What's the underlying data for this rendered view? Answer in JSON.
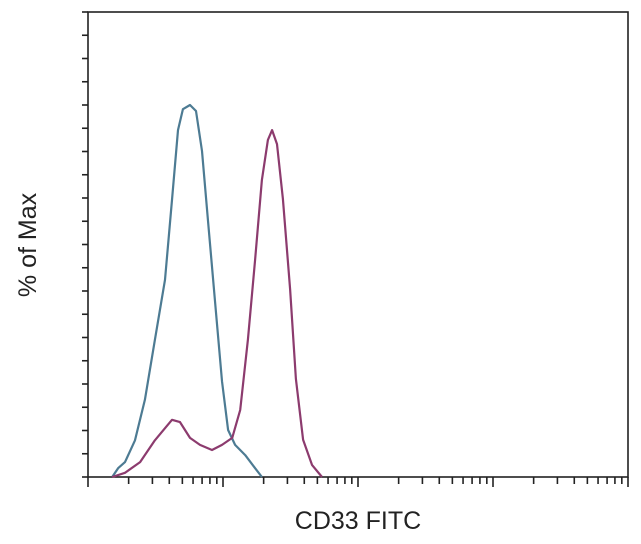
{
  "chart_data": {
    "type": "line",
    "title": "",
    "xlabel": "CD33 FITC",
    "ylabel": "% of Max",
    "xscale": "log",
    "xlim": [
      1,
      10000
    ],
    "ylim": [
      0,
      100
    ],
    "grid": false,
    "legend": "none",
    "series": [
      {
        "color": "#4d7b93",
        "x": [
          1.51,
          1.67,
          1.88,
          2.23,
          2.64,
          3.13,
          3.72,
          4.19,
          4.64,
          5.05,
          5.7,
          6.31,
          6.99,
          7.74,
          8.73,
          9.83,
          10.9,
          12.3,
          14.6,
          17.3,
          19.4
        ],
        "y": [
          0,
          1.9,
          3.2,
          7.9,
          16.6,
          29.5,
          42.4,
          59.6,
          74.6,
          79.1,
          80.0,
          78.7,
          70.1,
          55.1,
          37.8,
          20.6,
          10.1,
          6.9,
          4.7,
          1.9,
          0
        ]
      },
      {
        "color": "#8c3b6e",
        "x": [
          1.51,
          1.88,
          2.43,
          3.13,
          3.72,
          4.19,
          4.8,
          5.7,
          6.76,
          8.29,
          9.83,
          11.7,
          13.4,
          15.3,
          17.3,
          19.4,
          21.5,
          23.1,
          25.1,
          27.8,
          31.4,
          34.7,
          39.2,
          45.6,
          54.1
        ],
        "y": [
          0,
          0.9,
          3.2,
          7.9,
          10.5,
          12.3,
          11.8,
          8.4,
          6.9,
          5.8,
          6.9,
          8.4,
          14.4,
          29.5,
          46.7,
          63.9,
          72.5,
          74.6,
          71.6,
          59.8,
          40.4,
          21.1,
          8.0,
          2.6,
          0
        ]
      }
    ]
  }
}
